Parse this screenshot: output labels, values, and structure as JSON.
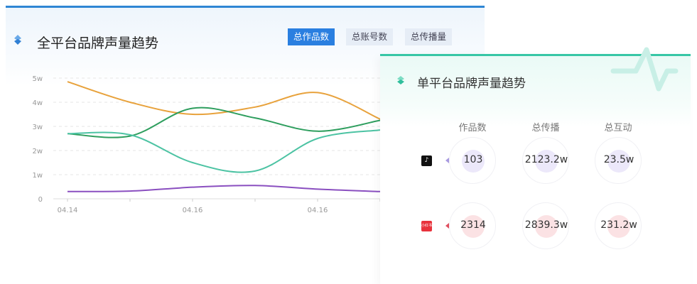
{
  "left_panel": {
    "title": "全平台品牌声量趋势",
    "tabs": [
      {
        "label": "总作品数",
        "active": true
      },
      {
        "label": "总账号数",
        "active": false
      },
      {
        "label": "总传播量",
        "active": false
      }
    ]
  },
  "chart_data": {
    "type": "line",
    "y_ticks": [
      "0",
      "1w",
      "2w",
      "3w",
      "4w",
      "5w"
    ],
    "ylim": [
      0,
      5
    ],
    "x_tick_labels": [
      "04.14",
      "",
      "04.16",
      "",
      "04.16",
      ""
    ],
    "grid": true,
    "series": [
      {
        "color": "#e8a23c",
        "values": [
          4.85,
          4.0,
          3.5,
          3.8,
          4.4,
          3.3
        ]
      },
      {
        "color": "#2e9e5e",
        "values": [
          2.7,
          2.6,
          3.75,
          3.35,
          2.8,
          3.25
        ]
      },
      {
        "color": "#4cc3a3",
        "values": [
          2.7,
          2.65,
          1.5,
          1.15,
          2.5,
          2.85
        ]
      },
      {
        "color": "#8a4fc0",
        "values": [
          0.3,
          0.32,
          0.48,
          0.55,
          0.4,
          0.3
        ]
      }
    ]
  },
  "right_panel": {
    "title": "单平台品牌声量趋势",
    "columns": [
      "作品数",
      "总传播",
      "总互动"
    ],
    "rows": [
      {
        "platform": "douyin",
        "icon": "tiktok-icon",
        "glyph": "♪",
        "color": "#111",
        "accent": "#ece8fa",
        "arrow": "#a89ae0",
        "values": [
          "103",
          "2123.2w",
          "23.5w"
        ]
      },
      {
        "platform": "xiaohongshu",
        "icon": "xiaohongshu-icon",
        "glyph": "小红书",
        "color": "#e8323c",
        "accent": "#fbe2e4",
        "arrow": "#e05060",
        "values": [
          "2314",
          "2839.3w",
          "231.2w"
        ]
      }
    ]
  }
}
